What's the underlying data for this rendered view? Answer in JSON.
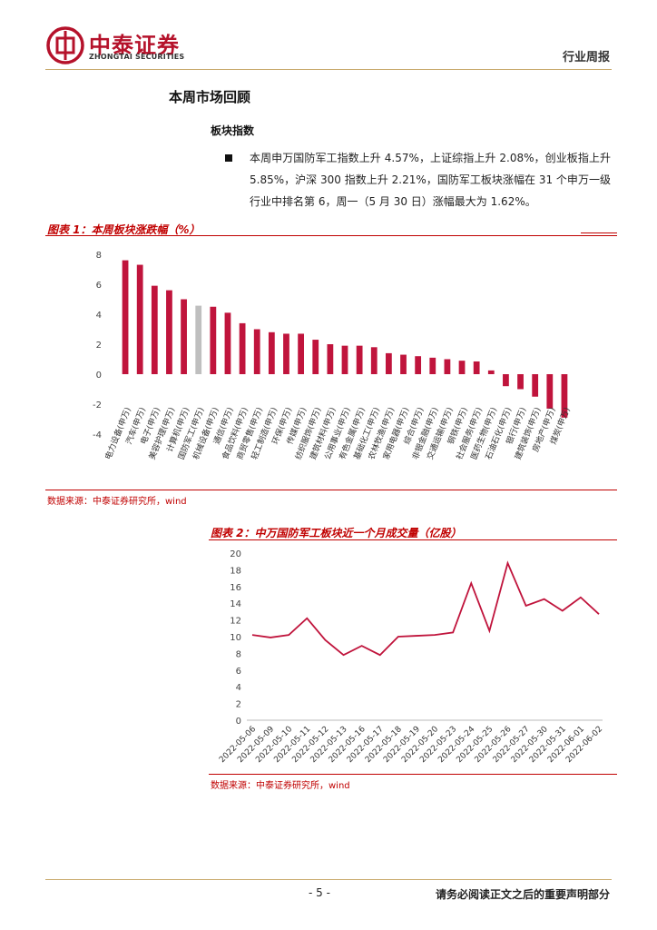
{
  "header": {
    "logo_name": "中泰证券",
    "logo_sub": "ZHONGTAI SECURITIES",
    "report_type": "行业周报"
  },
  "section": {
    "title": "本周市场回顾",
    "subtitle": "板块指数",
    "paragraph": "本周申万国防军工指数上升 4.57%，上证综指上升 2.08%，创业板指上升 5.85%，沪深 300 指数上升 2.21%，国防军工板块涨幅在 31 个申万一级行业中排名第 6，周一（5 月 30 日）涨幅最大为 1.62%。"
  },
  "figure1": {
    "title": "图表 1：本周板块涨跌幅（%）",
    "source": "数据来源：中泰证券研究所，wind"
  },
  "figure2": {
    "title": "图表 2：中万国防军工板块近一个月成交量（亿股）",
    "source": "数据来源：中泰证券研究所，wind"
  },
  "colors": {
    "bar": "#c0143c",
    "highlight_bar": "#bfbfbf",
    "line": "#c0143c",
    "accent": "#c00000"
  },
  "chart_data": [
    {
      "type": "bar",
      "categories": [
        "电力设备(申万)",
        "汽车(申万)",
        "电子(申万)",
        "美容护理(申万)",
        "计算机(申万)",
        "国防军工(申万)",
        "机械设备(申万)",
        "通信(申万)",
        "食品饮料(申万)",
        "商贸零售(申万)",
        "轻工制造(申万)",
        "环保(申万)",
        "传媒(申万)",
        "纺织服饰(申万)",
        "建筑材料(申万)",
        "公用事业(申万)",
        "有色金属(申万)",
        "基础化工(申万)",
        "农林牧渔(申万)",
        "家用电器(申万)",
        "综合(申万)",
        "非银金融(申万)",
        "交通运输(申万)",
        "钢铁(申万)",
        "社会服务(申万)",
        "医药生物(申万)",
        "石油石化(申万)",
        "银行(申万)",
        "建筑装饰(申万)",
        "房地产(申万)",
        "煤炭(申万)"
      ],
      "values": [
        7.6,
        7.3,
        5.9,
        5.6,
        5.0,
        4.57,
        4.5,
        4.1,
        3.4,
        3.0,
        2.8,
        2.7,
        2.7,
        2.3,
        2.0,
        1.9,
        1.9,
        1.8,
        1.4,
        1.3,
        1.2,
        1.1,
        1.0,
        0.9,
        0.85,
        0.25,
        -0.8,
        -1.0,
        -1.5,
        -2.3,
        -2.9
      ],
      "highlight_index": 5,
      "ylim": [
        -4,
        8
      ],
      "yticks": [
        -4,
        -2,
        0,
        2,
        4,
        6,
        8
      ],
      "grid": false
    },
    {
      "type": "line",
      "x": [
        "2022-05-06",
        "2022-05-09",
        "2022-05-10",
        "2022-05-11",
        "2022-05-12",
        "2022-05-13",
        "2022-05-16",
        "2022-05-17",
        "2022-05-18",
        "2022-05-19",
        "2022-05-20",
        "2022-05-23",
        "2022-05-24",
        "2022-05-25",
        "2022-05-26",
        "2022-05-27",
        "2022-05-30",
        "2022-05-31",
        "2022-06-01",
        "2022-06-02"
      ],
      "values": [
        10.2,
        9.9,
        10.2,
        12.2,
        9.6,
        7.8,
        8.9,
        7.8,
        10.0,
        10.1,
        10.2,
        10.5,
        16.4,
        10.7,
        18.8,
        13.7,
        14.5,
        13.1,
        14.7,
        12.7
      ],
      "ylim": [
        0,
        20
      ],
      "yticks": [
        0,
        2,
        4,
        6,
        8,
        10,
        12,
        14,
        16,
        18,
        20
      ],
      "grid": false
    }
  ],
  "footer": {
    "page_number": "- 5 -",
    "disclaimer": "请务必阅读正文之后的重要声明部分"
  }
}
